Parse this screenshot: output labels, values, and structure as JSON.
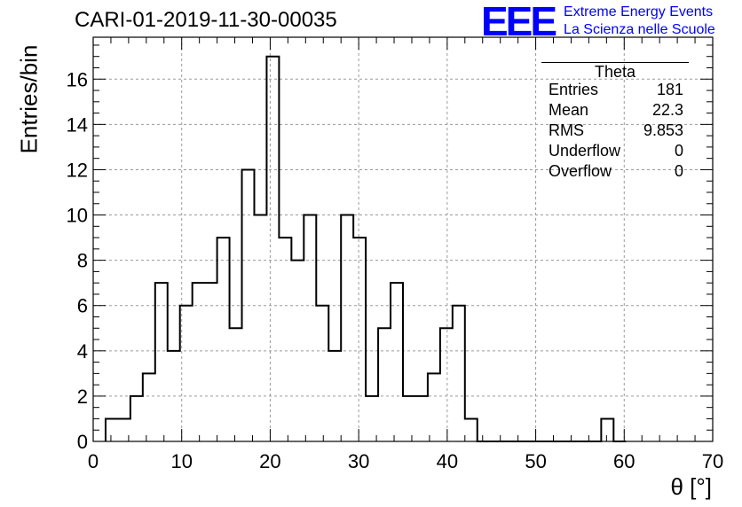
{
  "header": {
    "title": "CARI-01-2019-11-30-00035"
  },
  "logo": {
    "mark": "EEE",
    "line1": "Extreme Energy Events",
    "line2": "La Scienza nelle Scuole",
    "color": "#0000ff"
  },
  "stats": {
    "title": "Theta",
    "rows": [
      {
        "label": "Entries",
        "value": "181"
      },
      {
        "label": "Mean",
        "value": "22.3"
      },
      {
        "label": "RMS",
        "value": "9.853"
      },
      {
        "label": "Underflow",
        "value": "0"
      },
      {
        "label": "Overflow",
        "value": "0"
      }
    ]
  },
  "chart_data": {
    "type": "bar",
    "style": "step-histogram",
    "xlabel": "θ [°]",
    "ylabel": "Entries/bin",
    "xlim": [
      0,
      70
    ],
    "ylim": [
      0,
      17.85
    ],
    "x_ticks": [
      0,
      10,
      20,
      30,
      40,
      50,
      60,
      70
    ],
    "y_ticks": [
      0,
      2,
      4,
      6,
      8,
      10,
      12,
      14,
      16
    ],
    "grid": true,
    "bin_width": 1.4,
    "bin_start": 1.4,
    "values": [
      1,
      1,
      2,
      3,
      7,
      4,
      6,
      7,
      7,
      9,
      5,
      12,
      10,
      17,
      9,
      8,
      10,
      6,
      4,
      10,
      9,
      2,
      5,
      7,
      2,
      2,
      3,
      5,
      6,
      1,
      0,
      0,
      0,
      0,
      0,
      0,
      0,
      0,
      0,
      0,
      1,
      0
    ],
    "line_color": "#000000"
  }
}
